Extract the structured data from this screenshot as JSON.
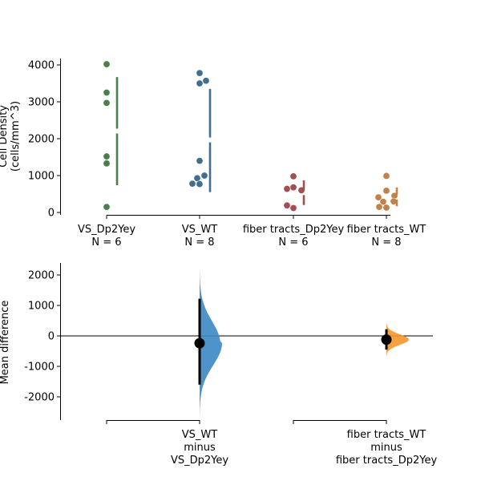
{
  "chart_data": [
    {
      "type": "scatter",
      "panel": "top",
      "ylabel_line1": "Cell Density",
      "ylabel_line2": "(cells/mm^3)",
      "ylim": [
        -100,
        4200
      ],
      "yticks": [
        0,
        1000,
        2000,
        3000,
        4000
      ],
      "grid": false,
      "groups": [
        {
          "name": "VS_Dp2Yey",
          "n_label": "N = 6",
          "color": "#4a7e4a",
          "values": [
            4020,
            3250,
            2970,
            1520,
            1330,
            150
          ],
          "mean": 2207,
          "sd_low": 740,
          "sd_high": 3670
        },
        {
          "name": "VS_WT",
          "n_label": "N = 8",
          "color": "#416e8f",
          "values": [
            3780,
            3570,
            3500,
            1400,
            1000,
            930,
            780,
            770
          ],
          "mean": 1966,
          "sd_low": 550,
          "sd_high": 3350
        },
        {
          "name": "fiber tracts_Dp2Yey",
          "n_label": "N = 6",
          "color": "#a14f4f",
          "values": [
            980,
            680,
            640,
            600,
            190,
            120
          ],
          "mean": 535,
          "sd_low": 200,
          "sd_high": 870
        },
        {
          "name": "fiber tracts_WT",
          "n_label": "N = 8",
          "color": "#c0824a",
          "values": [
            990,
            590,
            450,
            410,
            300,
            290,
            150,
            130
          ],
          "mean": 414,
          "sd_low": 170,
          "sd_high": 680
        }
      ]
    },
    {
      "type": "scatter",
      "panel": "bottom",
      "ylabel": "Mean difference",
      "ylim": [
        -2800,
        2400
      ],
      "yticks": [
        2000,
        1000,
        0,
        -1000,
        -2000
      ],
      "grid": false,
      "comparisons": [
        {
          "label_line1": "VS_WT",
          "label_line2": "minus",
          "label_line3": "VS_Dp2Yey",
          "mean_diff": -241,
          "ci_low": -1600,
          "ci_high": 1220,
          "color": "#3b87c4"
        },
        {
          "label_line1": "fiber tracts_WT",
          "label_line2": "minus",
          "label_line3": "fiber tracts_Dp2Yey",
          "mean_diff": -121,
          "ci_low": -450,
          "ci_high": 220,
          "color": "#f5962e"
        }
      ]
    }
  ]
}
